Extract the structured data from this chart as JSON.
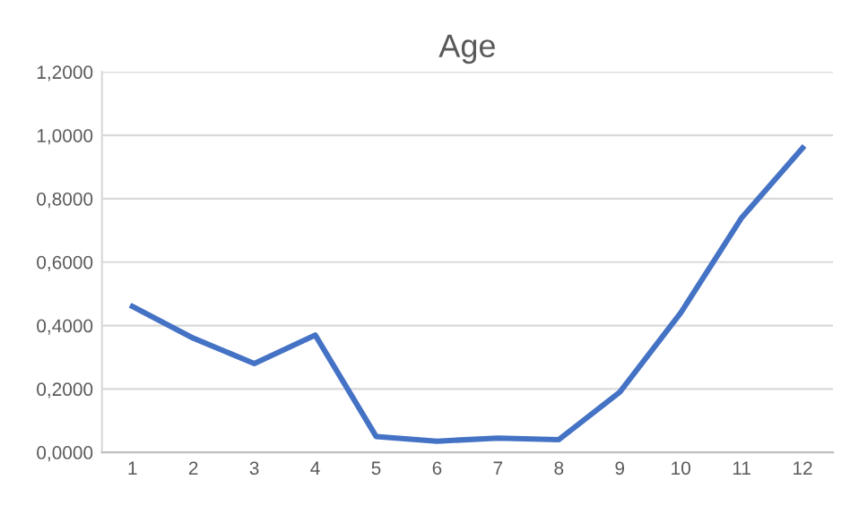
{
  "chart_data": {
    "type": "line",
    "title": "Age",
    "categories": [
      "1",
      "2",
      "3",
      "4",
      "5",
      "6",
      "7",
      "8",
      "9",
      "10",
      "11",
      "12"
    ],
    "series": [
      {
        "color": "#4472c4",
        "values": [
          0.46,
          0.36,
          0.28,
          0.37,
          0.05,
          0.035,
          0.045,
          0.04,
          0.19,
          0.44,
          0.74,
          0.96
        ]
      }
    ],
    "ylim": [
      0,
      1.2
    ],
    "yticks": [
      {
        "value": 0,
        "label": "0,0000"
      },
      {
        "value": 0.2,
        "label": "0,2000"
      },
      {
        "value": 0.4,
        "label": "0,4000"
      },
      {
        "value": 0.6,
        "label": "0,6000"
      },
      {
        "value": 0.8,
        "label": "0,8000"
      },
      {
        "value": 1.0,
        "label": "1,0000"
      },
      {
        "value": 1.2,
        "label": "1,2000"
      }
    ],
    "grid": "y",
    "marker": "none",
    "line_style": "solid"
  }
}
